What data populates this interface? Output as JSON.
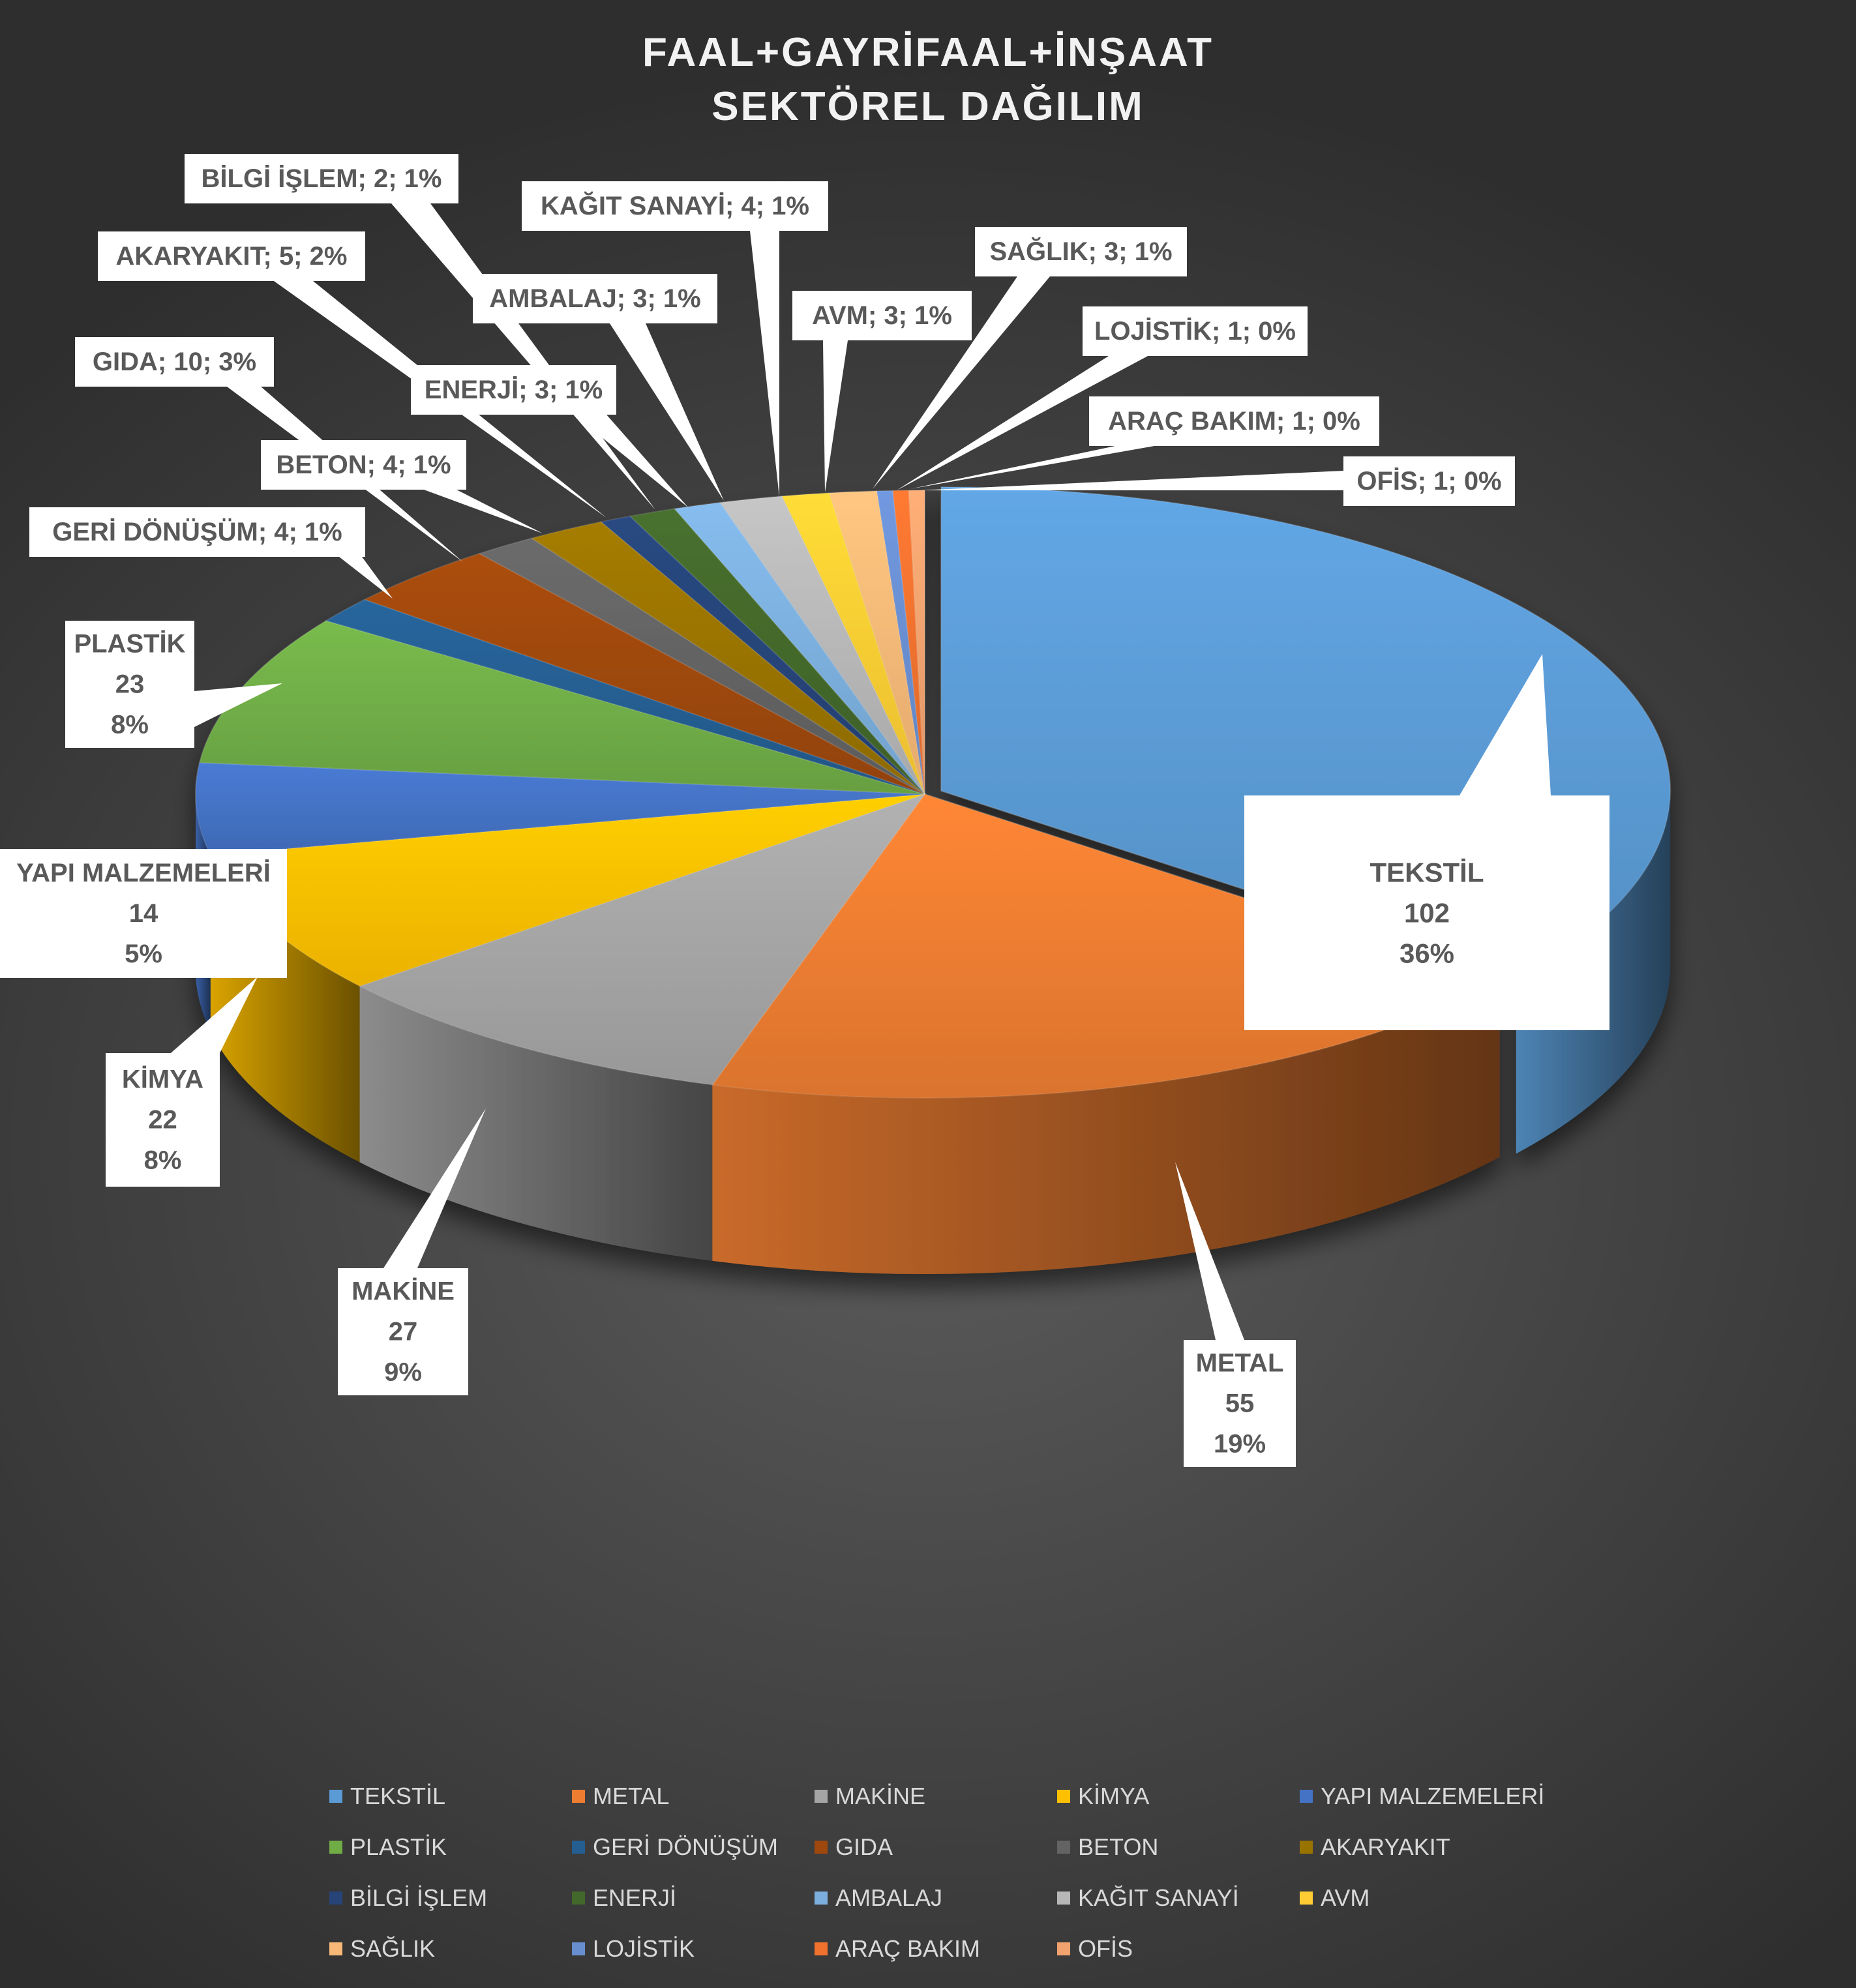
{
  "title_lines": [
    "FAAL+GAYRİFAAL+İNŞAAT",
    "SEKTÖREL DAĞILIM"
  ],
  "chart_data": {
    "type": "pie",
    "title": "FAAL+GAYRİFAAL+İNŞAAT SEKTÖREL DAĞILIM",
    "style": "3d-exploded-pie",
    "legend_position": "bottom",
    "categories": [
      "TEKSTİL",
      "METAL",
      "MAKİNE",
      "KİMYA",
      "YAPI MALZEMELERİ",
      "PLASTİK",
      "GERİ DÖNÜŞÜM",
      "GIDA",
      "BETON",
      "AKARYAKIT",
      "BİLGİ İŞLEM",
      "ENERJİ",
      "AMBALAJ",
      "KAĞIT SANAYİ",
      "AVM",
      "SAĞLIK",
      "LOJİSTİK",
      "ARAÇ BAKIM",
      "OFİS"
    ],
    "values": [
      102,
      55,
      27,
      22,
      14,
      23,
      4,
      10,
      4,
      5,
      2,
      3,
      3,
      4,
      3,
      3,
      1,
      1,
      1
    ],
    "colors": [
      "#5b9bd5",
      "#ed7d31",
      "#a5a5a5",
      "#ffc000",
      "#4472c4",
      "#70ad47",
      "#255e91",
      "#9e480e",
      "#636363",
      "#997300",
      "#264478",
      "#43682b",
      "#7cafdd",
      "#b7b7b7",
      "#ffcd33",
      "#f8b877",
      "#698ed0",
      "#f0712e",
      "#f2a26e"
    ],
    "data_labels": [
      {
        "lines": [
          "TEKSTİL",
          "102",
          "36%"
        ]
      },
      {
        "lines": [
          "METAL",
          "55",
          "19%"
        ]
      },
      {
        "lines": [
          "MAKİNE",
          "27",
          "9%"
        ]
      },
      {
        "lines": [
          "KİMYA",
          "22",
          "8%"
        ]
      },
      {
        "lines": [
          "YAPI MALZEMELERİ",
          "14",
          "5%"
        ]
      },
      {
        "lines": [
          "PLASTİK",
          "23",
          "8%"
        ]
      },
      {
        "lines": [
          "GERİ DÖNÜŞÜM; 4; 1%"
        ]
      },
      {
        "lines": [
          "GIDA; 10; 3%"
        ]
      },
      {
        "lines": [
          "BETON; 4; 1%"
        ]
      },
      {
        "lines": [
          "AKARYAKIT; 5; 2%"
        ]
      },
      {
        "lines": [
          "BİLGİ İŞLEM; 2; 1%"
        ]
      },
      {
        "lines": [
          "ENERJİ; 3; 1%"
        ]
      },
      {
        "lines": [
          "AMBALAJ; 3; 1%"
        ]
      },
      {
        "lines": [
          "KAĞIT SANAYİ; 4; 1%"
        ]
      },
      {
        "lines": [
          "AVM; 3; 1%"
        ]
      },
      {
        "lines": [
          "SAĞLIK; 3; 1%"
        ]
      },
      {
        "lines": [
          "LOJİSTİK; 1; 0%"
        ]
      },
      {
        "lines": [
          "ARAÇ BAKIM; 1; 0%"
        ]
      },
      {
        "lines": [
          "OFİS; 1; 0%"
        ]
      }
    ]
  },
  "legend": {
    "items": [
      "TEKSTİL",
      "METAL",
      "MAKİNE",
      "KİMYA",
      "YAPI MALZEMELERİ",
      "PLASTİK",
      "GERİ DÖNÜŞÜM",
      "GIDA",
      "BETON",
      "AKARYAKIT",
      "BİLGİ İŞLEM",
      "ENERJİ",
      "AMBALAJ",
      "KAĞIT SANAYİ",
      "AVM",
      "SAĞLIK",
      "LOJİSTİK",
      "ARAÇ BAKIM",
      "OFİS"
    ]
  }
}
